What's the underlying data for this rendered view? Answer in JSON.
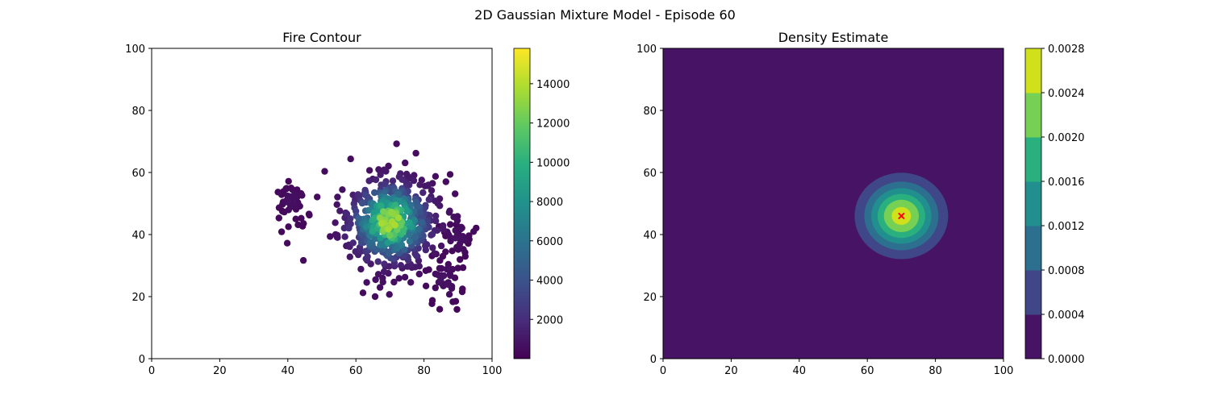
{
  "figure": {
    "suptitle": "2D Gaussian Mixture Model - Episode 60"
  },
  "chart_data": [
    {
      "type": "scatter",
      "title": "Fire Contour",
      "xlabel": "",
      "ylabel": "",
      "xlim": [
        0,
        100
      ],
      "ylim": [
        0,
        100
      ],
      "xticks": [
        0,
        20,
        40,
        60,
        80,
        100
      ],
      "yticks": [
        0,
        20,
        40,
        60,
        80,
        100
      ],
      "grid": false,
      "colormap": "viridis",
      "colorbar": {
        "range": [
          0,
          15800
        ],
        "ticks": [
          2000,
          4000,
          6000,
          8000,
          10000,
          12000,
          14000
        ]
      },
      "clusters": [
        {
          "cx": 70,
          "cy": 44,
          "sx": 7.5,
          "sy": 8,
          "n": 560,
          "v_peak": 15000,
          "v_floor": 500
        },
        {
          "cx": 41,
          "cy": 51,
          "sx": 2.5,
          "sy": 3,
          "n": 50,
          "v_peak": 800,
          "v_floor": 300
        },
        {
          "cx": 86,
          "cy": 25,
          "sx": 3,
          "sy": 5,
          "n": 40,
          "v_peak": 900,
          "v_floor": 300
        },
        {
          "cx": 90,
          "cy": 39,
          "sx": 2.5,
          "sy": 3,
          "n": 30,
          "v_peak": 900,
          "v_floor": 300
        }
      ]
    },
    {
      "type": "heatmap",
      "title": "Density Estimate",
      "xlabel": "",
      "ylabel": "",
      "xlim": [
        0,
        100
      ],
      "ylim": [
        0,
        100
      ],
      "xticks": [
        0,
        20,
        40,
        60,
        80,
        100
      ],
      "yticks": [
        0,
        20,
        40,
        60,
        80,
        100
      ],
      "gaussian": {
        "mean": [
          70,
          46
        ],
        "std": [
          7.1,
          7.2
        ],
        "peak": 0.0026
      },
      "levels": [
        0.0,
        0.0004,
        0.0008,
        0.0012,
        0.0016,
        0.002,
        0.0024,
        0.0028
      ],
      "level_colors": [
        "#471365",
        "#3f4788",
        "#2d6f8e",
        "#218f8d",
        "#2ab07f",
        "#75d054",
        "#d0e11c"
      ],
      "mean_marker": {
        "x": 70,
        "y": 46,
        "symbol": "x",
        "color": "#ff0000"
      },
      "colorbar": {
        "ticks": [
          "0.0000",
          "0.0004",
          "0.0008",
          "0.0012",
          "0.0016",
          "0.0020",
          "0.0024",
          "0.0028"
        ]
      }
    }
  ]
}
